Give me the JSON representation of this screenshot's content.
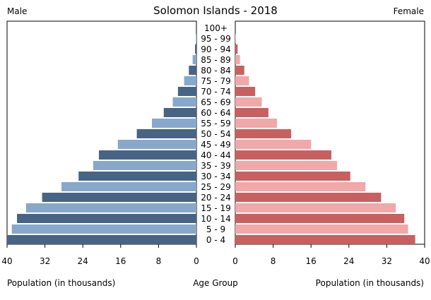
{
  "chart_data": {
    "type": "bar",
    "title": "Solomon Islands - 2018",
    "left_label": "Male",
    "right_label": "Female",
    "categories": [
      "0 - 4",
      "5 - 9",
      "10 - 14",
      "15 - 19",
      "20 - 24",
      "25 - 29",
      "30 - 34",
      "35 - 39",
      "40 - 44",
      "45 - 49",
      "50 - 54",
      "55 - 59",
      "60 - 64",
      "65 - 69",
      "70 - 74",
      "75 - 79",
      "80 - 84",
      "85 - 89",
      "90 - 94",
      "95 - 99",
      "100+"
    ],
    "series": [
      {
        "name": "Male",
        "values": [
          40.0,
          39.0,
          37.9,
          36.0,
          32.6,
          28.5,
          24.9,
          21.8,
          20.6,
          16.6,
          12.6,
          9.4,
          6.9,
          5.0,
          3.9,
          2.6,
          1.6,
          0.8,
          0.3,
          0.1,
          0.0
        ]
      },
      {
        "name": "Female",
        "values": [
          38.0,
          36.5,
          35.7,
          33.9,
          30.8,
          27.5,
          24.3,
          21.5,
          20.3,
          16.0,
          11.8,
          8.8,
          7.0,
          5.6,
          4.2,
          2.9,
          1.9,
          1.0,
          0.5,
          0.1,
          0.0
        ]
      }
    ],
    "xlim": [
      0,
      40
    ],
    "xticks": [
      "0",
      "8",
      "16",
      "24",
      "32",
      "40"
    ],
    "xlabel_left": "Population (in thousands)",
    "xlabel_center": "Age Group",
    "xlabel_right": "Population (in thousands)",
    "colors": {
      "male_dark": "#476485",
      "male_light": "#88a8cb",
      "female_dark": "#c86060",
      "female_light": "#f0a8a8"
    },
    "grid": false
  }
}
